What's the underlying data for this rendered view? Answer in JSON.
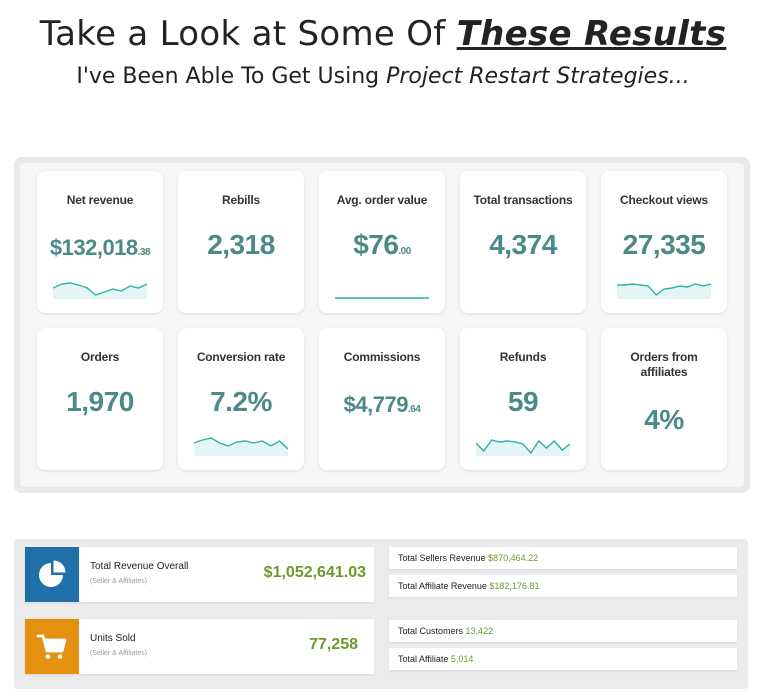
{
  "header": {
    "headline_plain": "Take a Look at Some Of ",
    "headline_emphasis": "These Results",
    "subline_plain": "I've Been Able To Get Using ",
    "subline_emphasis": "Project Restart Strategies..."
  },
  "colors": {
    "metric": "#4a8a88",
    "money_green": "#6a9a2b",
    "revenue_tile": "#1f6fa8",
    "units_tile": "#e5900f",
    "sparkline": "#2bb3ad"
  },
  "metrics": [
    {
      "label": "Net revenue",
      "value": "$132,018",
      "cents": ".38",
      "sparkline": [
        10,
        14,
        15,
        13,
        10,
        3,
        6,
        9,
        7,
        12,
        10,
        14
      ]
    },
    {
      "label": "Rebills",
      "value": "2,318"
    },
    {
      "label": "Avg. order value",
      "value": "$76",
      "cents": ".00",
      "sparkline": [
        0,
        0
      ]
    },
    {
      "label": "Total transactions",
      "value": "4,374"
    },
    {
      "label": "Checkout views",
      "value": "27,335",
      "sparkline": [
        13,
        13,
        14,
        13,
        12,
        3,
        9,
        10,
        12,
        11,
        14,
        12,
        14
      ]
    },
    {
      "label": "Orders",
      "value": "1,970"
    },
    {
      "label": "Conversion rate",
      "value": "7.2%",
      "sparkline": [
        12,
        15,
        17,
        12,
        9,
        13,
        14,
        12,
        14,
        9,
        14,
        6
      ]
    },
    {
      "label": "Commissions",
      "value": "$4,779",
      "cents": ".64"
    },
    {
      "label": "Refunds",
      "value": "59",
      "sparkline": [
        12,
        4,
        15,
        13,
        14,
        13,
        11,
        2,
        14,
        7,
        14,
        5,
        11
      ]
    },
    {
      "label": "Orders from affiliates",
      "value": "4%"
    }
  ],
  "summary": {
    "total_revenue": {
      "title": "Total Revenue Overall",
      "subtitle": "(Seller & Affiliates)",
      "amount": "$1,052,641.03",
      "icon": "pie-chart-icon"
    },
    "units_sold": {
      "title": "Units Sold",
      "subtitle": "(Seller & Affiliates)",
      "amount": "77,258",
      "icon": "shopping-cart-icon"
    },
    "sellers_revenue": {
      "label": "Total Sellers Revenue",
      "value": "$870,464.22"
    },
    "affiliate_revenue": {
      "label": "Total Affiliate Revenue",
      "value": "$182,176.81"
    },
    "customers": {
      "label": "Total Customers",
      "value": "13,422"
    },
    "affiliates": {
      "label": "Total Affiliate",
      "value": "5,014"
    }
  }
}
